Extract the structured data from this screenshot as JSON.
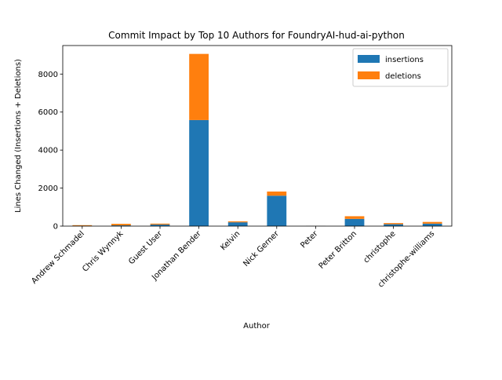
{
  "chart_data": {
    "type": "bar",
    "stacked": true,
    "title": "Commit Impact by Top 10 Authors for FoundryAI-hud-ai-python",
    "xlabel": "Author",
    "ylabel": "Lines Changed (Insertions + Deletions)",
    "ylim": [
      0,
      9500
    ],
    "yticks": [
      0,
      2000,
      4000,
      6000,
      8000
    ],
    "grid": false,
    "legend": "top-right",
    "categories": [
      "Andrew Schmadel",
      "Chris Wynnyk",
      "Guest User",
      "Jonathan Bender",
      "Kelvin",
      "Nick Gerner",
      "Peter",
      "Peter Britton",
      "christophe",
      "christophe-williams"
    ],
    "series": [
      {
        "name": "insertions",
        "color": "#1f77b4",
        "values": [
          20,
          40,
          80,
          5580,
          200,
          1600,
          5,
          380,
          100,
          130
        ]
      },
      {
        "name": "deletions",
        "color": "#ff7f0e",
        "values": [
          30,
          80,
          50,
          3480,
          50,
          220,
          3,
          140,
          60,
          90
        ]
      }
    ]
  }
}
